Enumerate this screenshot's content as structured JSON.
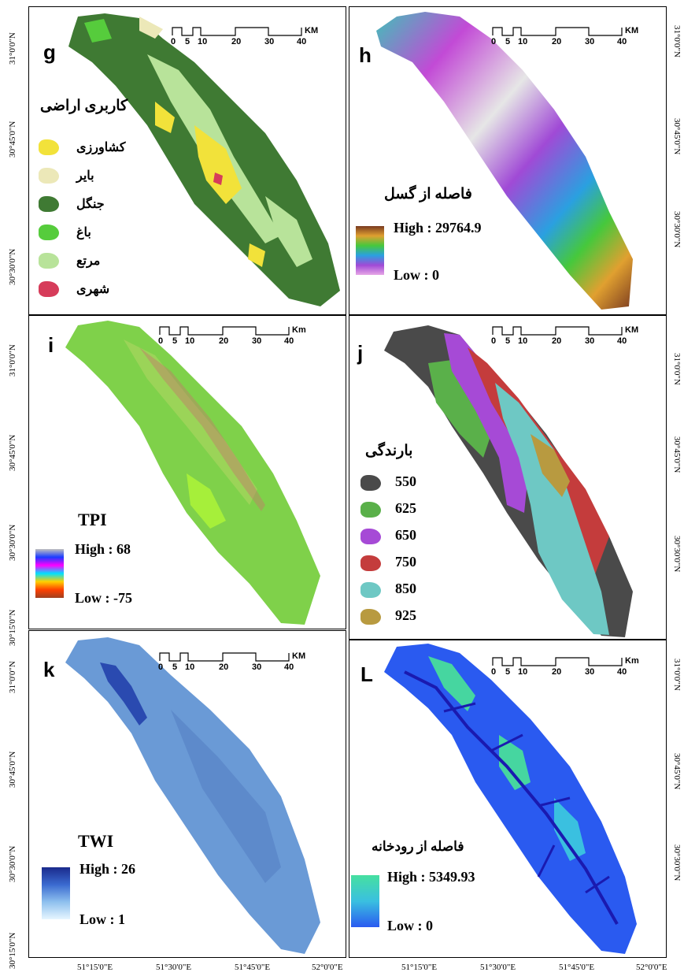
{
  "panels": {
    "g": {
      "letter": "g",
      "title": "کاربری اراضی",
      "scale_unit": "KM",
      "legend": [
        {
          "label": "کشاورزی",
          "color": "#f2e23a"
        },
        {
          "label": "بایر",
          "color": "#ece8b8"
        },
        {
          "label": "جنگل",
          "color": "#3f7a33"
        },
        {
          "label": "باغ",
          "color": "#56cc3c"
        },
        {
          "label": "مرتع",
          "color": "#b8e39a"
        },
        {
          "label": "شهری",
          "color": "#d63c5a"
        }
      ]
    },
    "h": {
      "letter": "h",
      "title": "فاصله از گسل",
      "scale_unit": "KM",
      "high": "High : 29764.9",
      "low": "Low : 0"
    },
    "i": {
      "letter": "i",
      "title": "TPI",
      "scale_unit": "Km",
      "high": "High : 68",
      "low": "Low : -75"
    },
    "j": {
      "letter": "j",
      "title": "بارندگی",
      "scale_unit": "KM",
      "legend": [
        {
          "label": "550",
          "color": "#4a4a4a"
        },
        {
          "label": "625",
          "color": "#5ab04a"
        },
        {
          "label": "650",
          "color": "#a64ad6"
        },
        {
          "label": "750",
          "color": "#c43c3c"
        },
        {
          "label": "850",
          "color": "#6ec8c4"
        },
        {
          "label": "925",
          "color": "#b89a40"
        }
      ]
    },
    "k": {
      "letter": "k",
      "title": "TWI",
      "scale_unit": "KM",
      "high": "High : 26",
      "low": "Low : 1"
    },
    "L": {
      "letter": "L",
      "title": "فاصله از رودخانه",
      "scale_unit": "Km",
      "high": "High : 5349.93",
      "low": "Low : 0"
    }
  },
  "scale_ticks": [
    "0",
    "5",
    "10",
    "20",
    "30",
    "40"
  ],
  "lat_labels": [
    "31°0'0\"N",
    "30°45'0\"N",
    "30°30'0\"N",
    "30°15'0\"N"
  ],
  "lon_labels": [
    "51°15'0\"E",
    "51°30'0\"E",
    "51°45'0\"E",
    "52°0'0\"E"
  ]
}
